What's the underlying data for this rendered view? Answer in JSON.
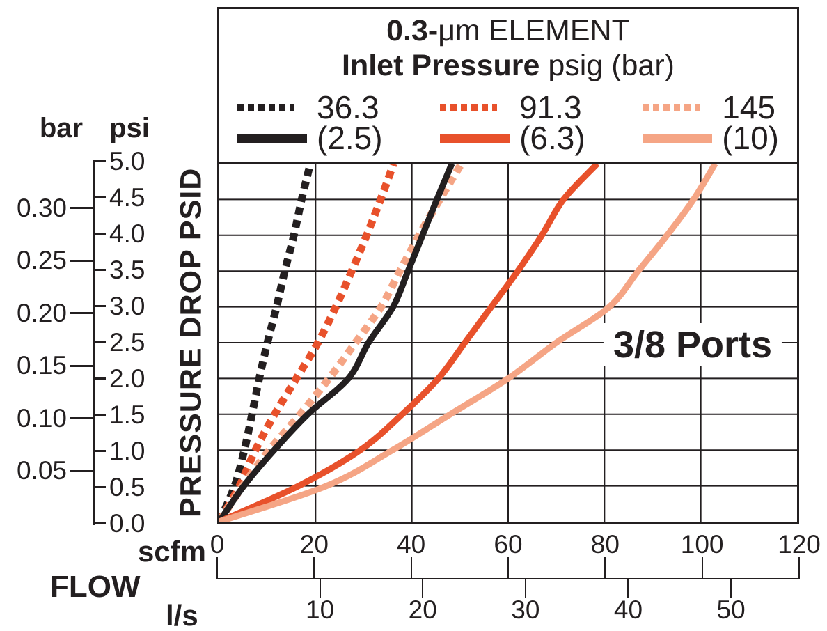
{
  "title": {
    "line1_bold": "0.3-",
    "line1_rest": "μm ELEMENT",
    "line2_bold": "Inlet Pressure",
    "line2_rest": " psig (bar)"
  },
  "legend": {
    "entries": [
      {
        "psig_label": "36.3",
        "bar_label": "(2.5)",
        "color": "#231F20"
      },
      {
        "psig_label": "91.3",
        "bar_label": "(6.3)",
        "color": "#E8512B"
      },
      {
        "psig_label": "145",
        "bar_label": "(10)",
        "color": "#F5A585"
      }
    ]
  },
  "y_axis": {
    "left_unit": "bar",
    "right_unit": "psi",
    "axis_title": "PRESSURE DROP PSID",
    "psi_ticks": [
      "0.0",
      "0.5",
      "1.0",
      "1.5",
      "2.0",
      "2.5",
      "3.0",
      "3.5",
      "4.0",
      "4.5",
      "5.0"
    ],
    "bar_ticks": [
      "0.05",
      "0.10",
      "0.15",
      "0.20",
      "0.25",
      "0.30"
    ]
  },
  "x_axis": {
    "title": "FLOW",
    "primary_unit": "scfm",
    "secondary_unit": "l/s",
    "scfm_ticks": [
      "0",
      "20",
      "40",
      "60",
      "80",
      "100",
      "120"
    ],
    "ls_ticks": [
      "10",
      "20",
      "30",
      "40",
      "50"
    ]
  },
  "annotation": "3/8 Ports",
  "colors": {
    "ink": "#231F20",
    "orange": "#E8512B",
    "salmon": "#F5A585"
  },
  "chart_data": {
    "type": "line",
    "title": "0.3-μm ELEMENT",
    "subtitle": "Inlet Pressure psig (bar)",
    "xlabel": "FLOW",
    "ylabel": "PRESSURE DROP PSID",
    "x_units": [
      "scfm",
      "l/s"
    ],
    "y_units": [
      "psi",
      "bar"
    ],
    "xlim_scfm": [
      0,
      120
    ],
    "ylim_psi": [
      0,
      5
    ],
    "scfm_per_ls": 2.1189,
    "psi_per_bar": 14.504,
    "grid": true,
    "x_grid_step_scfm": 20,
    "y_grid_step_psi": 0.5,
    "legend_position": "top",
    "annotation": "3/8 Ports",
    "series": [
      {
        "name": "36.3 psig (2.5 bar) inlet - dotted curve",
        "inlet_psig": 36.3,
        "inlet_bar": 2.5,
        "style": "dotted",
        "color": "#231F20",
        "points_scfm_psi": [
          [
            0,
            0
          ],
          [
            3.2,
            0.5
          ],
          [
            5.2,
            1.0
          ],
          [
            6.8,
            1.5
          ],
          [
            8.3,
            2.0
          ],
          [
            10.0,
            2.5
          ],
          [
            11.9,
            3.0
          ],
          [
            13.6,
            3.5
          ],
          [
            15.5,
            4.0
          ],
          [
            17.1,
            4.5
          ],
          [
            18.9,
            5.0
          ]
        ]
      },
      {
        "name": "91.3 psig (6.3 bar) inlet - dotted curve",
        "inlet_psig": 91.3,
        "inlet_bar": 6.3,
        "style": "dotted",
        "color": "#E8512B",
        "points_scfm_psi": [
          [
            0,
            0
          ],
          [
            4.2,
            0.5
          ],
          [
            7.5,
            1.0
          ],
          [
            11.5,
            1.5
          ],
          [
            16.0,
            2.0
          ],
          [
            20.5,
            2.5
          ],
          [
            24.2,
            3.0
          ],
          [
            27.5,
            3.5
          ],
          [
            30.6,
            4.0
          ],
          [
            33.5,
            4.5
          ],
          [
            36.2,
            5.0
          ]
        ]
      },
      {
        "name": "145 psig (10 bar) inlet - dotted curve",
        "inlet_psig": 145,
        "inlet_bar": 10,
        "style": "dotted",
        "color": "#F5A585",
        "points_scfm_psi": [
          [
            0,
            0
          ],
          [
            4.9,
            0.5
          ],
          [
            10.4,
            1.0
          ],
          [
            16.8,
            1.5
          ],
          [
            22.8,
            2.0
          ],
          [
            28.3,
            2.5
          ],
          [
            33.6,
            3.0
          ],
          [
            37.5,
            3.5
          ],
          [
            41.5,
            4.0
          ],
          [
            45.8,
            4.5
          ],
          [
            50.3,
            5.0
          ]
        ]
      },
      {
        "name": "36.3 psig (2.5 bar) inlet - solid curve",
        "inlet_psig": 36.3,
        "inlet_bar": 2.5,
        "style": "solid",
        "color": "#231F20",
        "points_scfm_psi": [
          [
            0,
            0
          ],
          [
            5.1,
            0.5
          ],
          [
            11.4,
            1.0
          ],
          [
            18.4,
            1.5
          ],
          [
            26.8,
            2.0
          ],
          [
            31.0,
            2.5
          ],
          [
            36.1,
            3.0
          ],
          [
            39.2,
            3.5
          ],
          [
            42.2,
            4.0
          ],
          [
            45.2,
            4.5
          ],
          [
            48.3,
            5.0
          ]
        ]
      },
      {
        "name": "91.3 psig (6.3 bar) inlet - solid curve",
        "inlet_psig": 91.3,
        "inlet_bar": 6.3,
        "style": "solid",
        "color": "#E8512B",
        "points_scfm_psi": [
          [
            0,
            0
          ],
          [
            16.5,
            0.5
          ],
          [
            29.3,
            1.0
          ],
          [
            38.0,
            1.5
          ],
          [
            45.5,
            2.0
          ],
          [
            51.0,
            2.5
          ],
          [
            56.5,
            3.0
          ],
          [
            62.0,
            3.5
          ],
          [
            67.0,
            4.0
          ],
          [
            71.5,
            4.5
          ],
          [
            78.5,
            5.0
          ]
        ]
      },
      {
        "name": "145 psig (10 bar) inlet - solid curve",
        "inlet_psig": 145,
        "inlet_bar": 10,
        "style": "solid",
        "color": "#F5A585",
        "points_scfm_psi": [
          [
            0,
            0
          ],
          [
            22.3,
            0.5
          ],
          [
            36.0,
            1.0
          ],
          [
            48.0,
            1.5
          ],
          [
            60.0,
            2.0
          ],
          [
            70.0,
            2.5
          ],
          [
            81.0,
            3.0
          ],
          [
            87.0,
            3.5
          ],
          [
            93.0,
            4.0
          ],
          [
            98.5,
            4.5
          ],
          [
            103.0,
            5.0
          ]
        ]
      }
    ]
  }
}
